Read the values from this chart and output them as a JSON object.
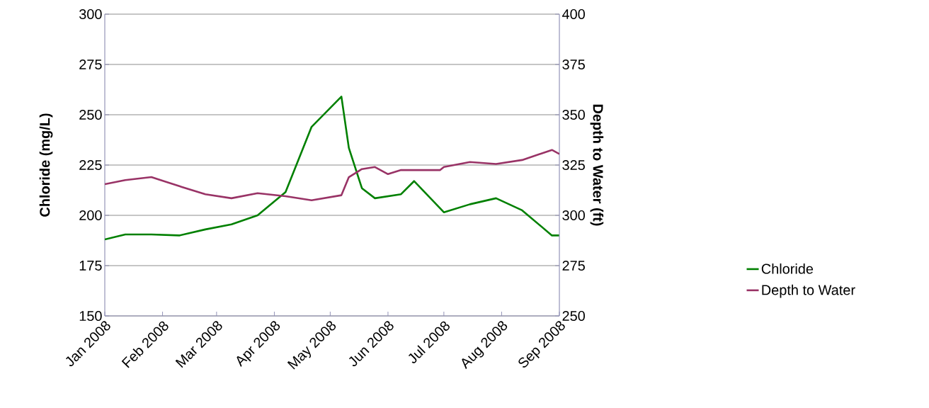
{
  "chart_data": {
    "type": "line",
    "ylabel": "Chloride (mg/L)",
    "y2label": "Depth to Water (ft)",
    "x": [
      "2008-01-01",
      "2008-01-12",
      "2008-01-26",
      "2008-02-10",
      "2008-02-24",
      "2008-03-09",
      "2008-03-23",
      "2008-04-07",
      "2008-04-21",
      "2008-05-07",
      "2008-05-11",
      "2008-05-18",
      "2008-05-25",
      "2008-06-01",
      "2008-06-08",
      "2008-06-15",
      "2008-06-29",
      "2008-07-01",
      "2008-07-15",
      "2008-07-29",
      "2008-08-12",
      "2008-08-28",
      "2008-09-01"
    ],
    "series": [
      {
        "name": "Chloride",
        "color": "#008000",
        "values": [
          188,
          190.5,
          190.5,
          190,
          193,
          195.5,
          200,
          211.5,
          244,
          259,
          233.5,
          213.5,
          208.5,
          209.5,
          210.5,
          217,
          203.5,
          201.5,
          205.5,
          208.5,
          202.5,
          190,
          190
        ]
      },
      {
        "name": "Depth to Water",
        "color": "#993366",
        "axis": "y2",
        "values": [
          315.5,
          317.5,
          319,
          314.5,
          310.5,
          308.5,
          311,
          309.5,
          307.5,
          310,
          319,
          323,
          324,
          320.5,
          322.5,
          322.5,
          322.5,
          324,
          326.5,
          325.5,
          327.5,
          332.5,
          330.5
        ]
      }
    ],
    "xlim": [
      "2008-01-01",
      "2008-09-01"
    ],
    "xticks": [
      {
        "value": "2008-01-01",
        "label": "Jan 2008"
      },
      {
        "value": "2008-02-01",
        "label": "Feb 2008"
      },
      {
        "value": "2008-03-01",
        "label": "Mar 2008"
      },
      {
        "value": "2008-04-01",
        "label": "Apr 2008"
      },
      {
        "value": "2008-05-01",
        "label": "May 2008"
      },
      {
        "value": "2008-06-01",
        "label": "Jun 2008"
      },
      {
        "value": "2008-07-01",
        "label": "Jul 2008"
      },
      {
        "value": "2008-08-01",
        "label": "Aug 2008"
      },
      {
        "value": "2008-09-01",
        "label": "Sep 2008"
      }
    ],
    "ylim": [
      150,
      300
    ],
    "yticks": [
      150,
      175,
      200,
      225,
      250,
      275,
      300
    ],
    "y2lim": [
      250,
      400
    ],
    "y2ticks": [
      250,
      275,
      300,
      325,
      350,
      375,
      400
    ],
    "grid": "y",
    "legend": "right"
  }
}
